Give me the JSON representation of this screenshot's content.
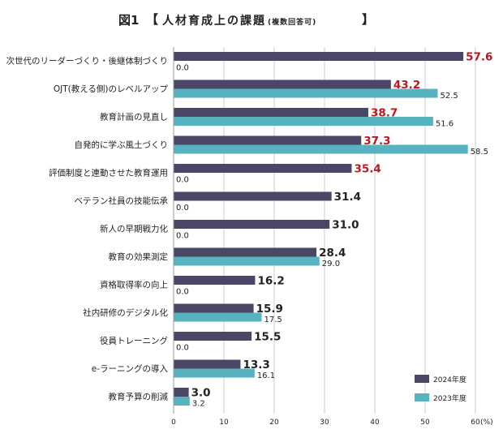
{
  "header": {
    "figure_label": "図1",
    "bracket_open": "【",
    "title": "人材育成上の課題",
    "subtitle": "(複数回答可)",
    "bracket_close": "】"
  },
  "colors": {
    "series_2024": "#4a4766",
    "series_2023": "#56b3bf",
    "highlight_text": "#c0161f",
    "grid": "#cccccc"
  },
  "chart_data": {
    "type": "bar",
    "orientation": "horizontal",
    "title": "人材育成上の課題 (複数回答可)",
    "categories": [
      "次世代のリーダーづくり・後継体制づくり",
      "OJT(教える側)のレベルアップ",
      "教育計画の見直し",
      "自発的に学ぶ風土づくり",
      "評価制度と連動させた教育運用",
      "ベテラン社員の技能伝承",
      "新人の早期戦力化",
      "教育の効果測定",
      "資格取得率の向上",
      "社内研修のデジタル化",
      "役員トレーニング",
      "e-ラーニングの導入",
      "教育予算の削減"
    ],
    "series": [
      {
        "name": "2024年度",
        "values": [
          57.6,
          43.2,
          38.7,
          37.3,
          35.4,
          31.4,
          31.0,
          28.4,
          16.2,
          15.9,
          15.5,
          13.3,
          3.0
        ],
        "labels": [
          "57.6",
          "43.2",
          "38.7",
          "37.3",
          "35.4",
          "31.4",
          "31.0",
          "28.4",
          "16.2",
          "15.9",
          "15.5",
          "13.3",
          "3.0"
        ],
        "highlight_top": 5
      },
      {
        "name": "2023年度",
        "values": [
          0.0,
          52.5,
          51.6,
          58.5,
          0.0,
          0.0,
          0.0,
          29.0,
          0.0,
          17.5,
          0.0,
          16.1,
          3.2
        ],
        "labels": [
          "0.0",
          "52.5",
          "51.6",
          "58.5",
          "0.0",
          "0.0",
          "0.0",
          "29.0",
          "0.0",
          "17.5",
          "0.0",
          "16.1",
          "3.2"
        ]
      }
    ],
    "xlim": [
      0,
      60
    ],
    "xticks": [
      "0",
      "10",
      "20",
      "30",
      "40",
      "50",
      "60"
    ],
    "x_unit": "(%)",
    "grid": true,
    "legend_position": "bottom-right"
  }
}
